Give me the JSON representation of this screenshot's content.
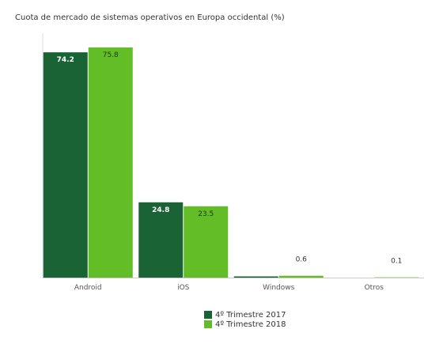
{
  "chart_data": {
    "type": "bar",
    "title": "Cuota de mercado de sistemas operativos en Europa occidental (%)",
    "categories": [
      "Android",
      "iOS",
      "Windows",
      "Otros"
    ],
    "series": [
      {
        "name": "4º Trimestre 2017",
        "values": [
          74.2,
          24.8,
          0.4,
          0
        ],
        "labels": [
          "74.2",
          "24.8",
          "",
          ""
        ],
        "color": "#196334"
      },
      {
        "name": "4º Trimestre 2018",
        "values": [
          75.8,
          23.5,
          0.6,
          0.1
        ],
        "labels": [
          "75.8",
          "23.5",
          "0.6",
          "0.1"
        ],
        "color": "#62bd26"
      }
    ],
    "ylim": [
      0,
      80
    ],
    "grid": false,
    "legend_position": "bottom"
  }
}
